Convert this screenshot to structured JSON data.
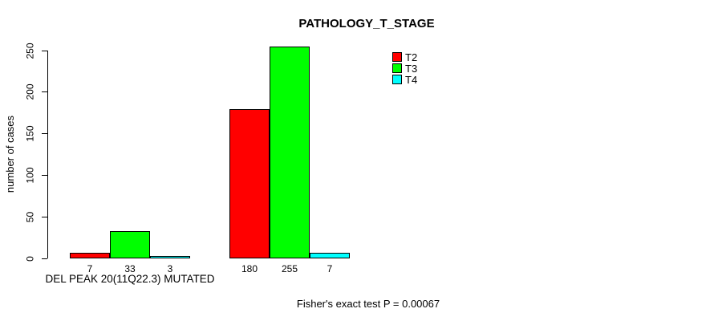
{
  "chart_data": {
    "type": "bar",
    "title": "PATHOLOGY_T_STAGE",
    "ylabel": "number of cases",
    "xlabel": "",
    "ylim": [
      0,
      250
    ],
    "yticks": [
      0,
      50,
      100,
      150,
      200,
      250
    ],
    "grid": false,
    "legend_position": "top-right",
    "show_bar_values": true,
    "categories": [
      "DEL PEAK 20(11Q22.3) MUTATED",
      ""
    ],
    "series": [
      {
        "name": "T2",
        "color": "#ff0000",
        "values": [
          7,
          180
        ]
      },
      {
        "name": "T3",
        "color": "#00ff00",
        "values": [
          33,
          255
        ]
      },
      {
        "name": "T4",
        "color": "#00ffff",
        "values": [
          3,
          7
        ]
      }
    ],
    "annotation": "Fisher's exact test P = 0.00067"
  },
  "page": {
    "background_color": "#ffffff",
    "text_color": "#000000"
  }
}
